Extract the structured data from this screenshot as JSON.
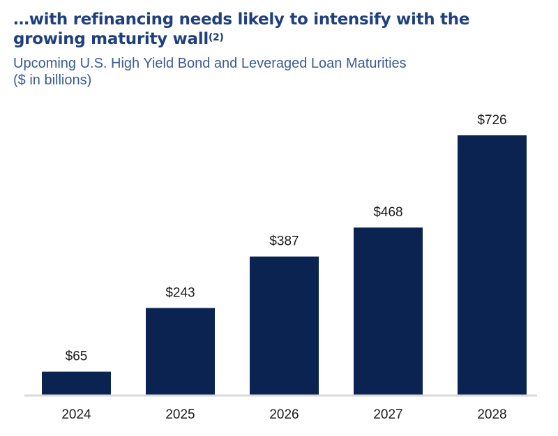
{
  "header": {
    "title": "…with refinancing needs likely to intensify with the growing maturity wall",
    "title_footnote": "(2)",
    "subtitle_line1": "Upcoming U.S. High Yield Bond and Leveraged Loan Maturities",
    "subtitle_line2": "($ in billions)"
  },
  "colors": {
    "bar": "#0b2351",
    "title": "#1f3f7e",
    "subtitle": "#3a5a96",
    "axis": "#d9d9d9"
  },
  "chart_data": {
    "type": "bar",
    "title": "Upcoming U.S. High Yield Bond and Leveraged Loan Maturities",
    "subtitle": "($ in billions)",
    "categories": [
      "2024",
      "2025",
      "2026",
      "2027",
      "2028"
    ],
    "values": [
      65,
      243,
      387,
      468,
      726
    ],
    "data_labels": [
      "$65",
      "$243",
      "$387",
      "$468",
      "$726"
    ],
    "xlabel": "",
    "ylabel": "",
    "ylim": [
      0,
      726
    ],
    "grid": false,
    "legend": "none"
  }
}
